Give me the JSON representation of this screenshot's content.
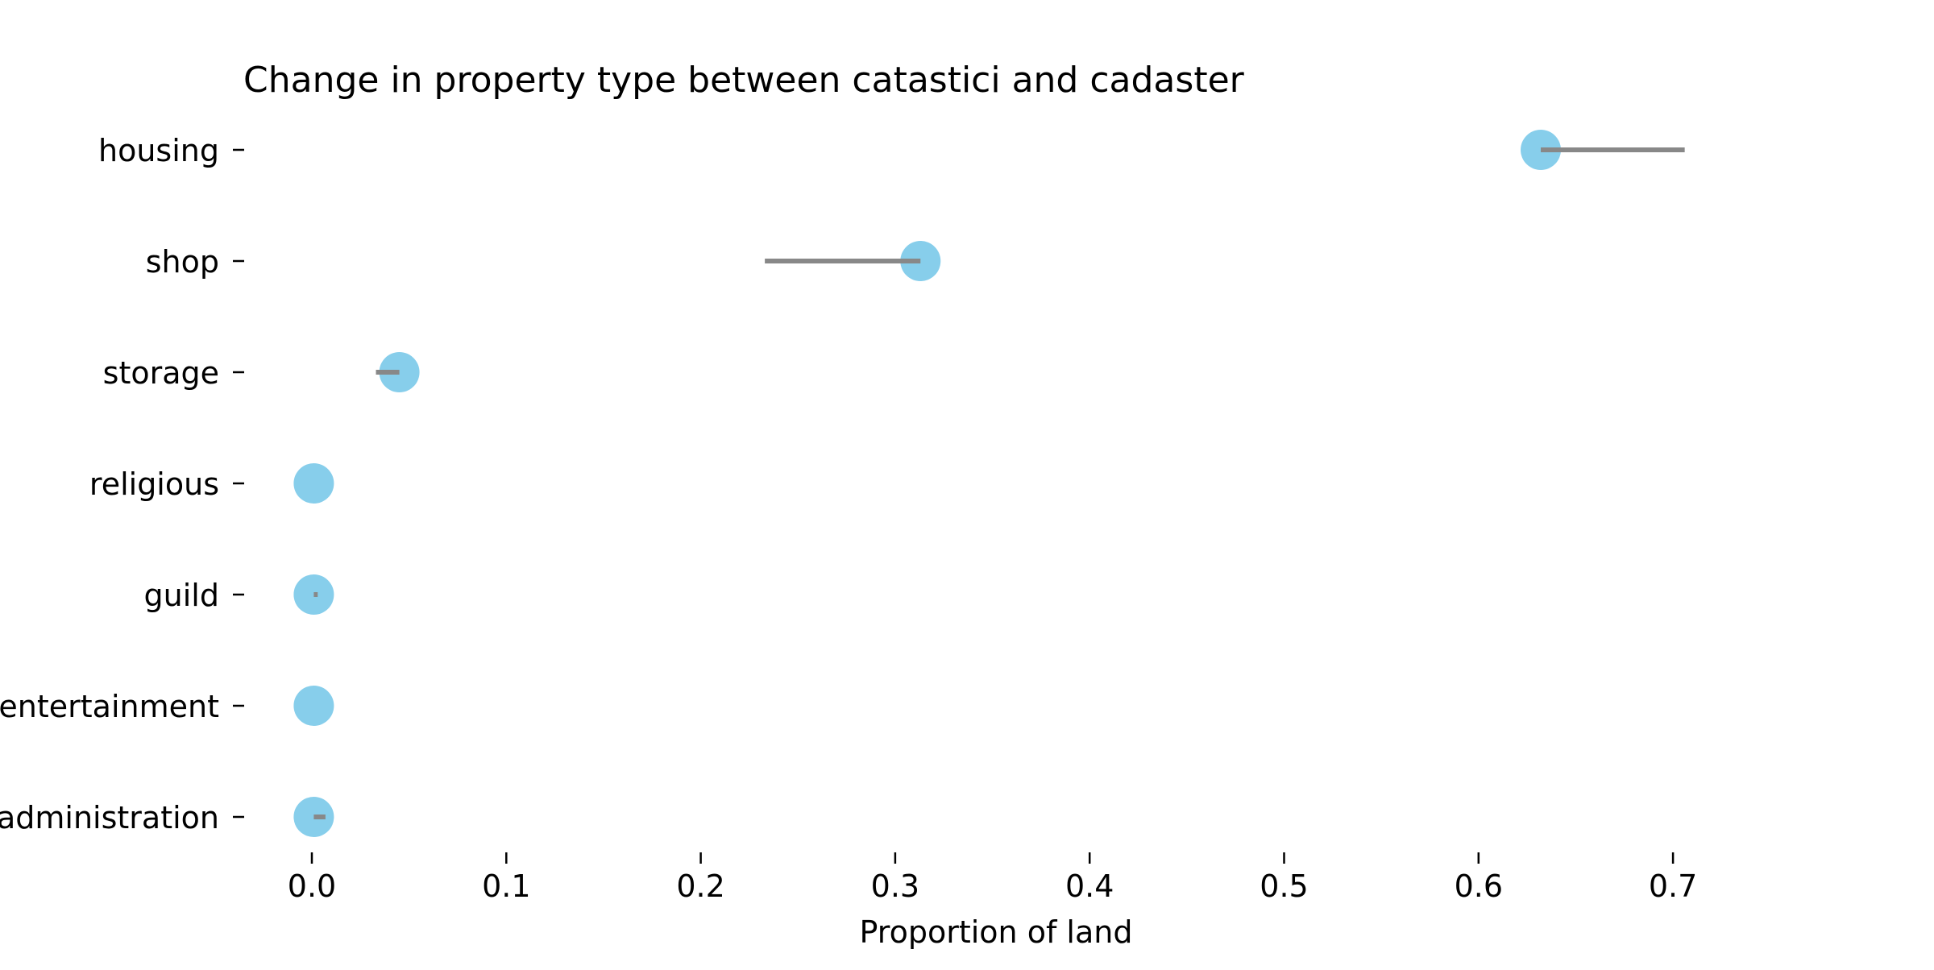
{
  "chart_data": {
    "type": "dumbbell",
    "title": "Change in property type between catastici and cadaster",
    "xlabel": "Proportion of land",
    "ylabel": "",
    "xlim": [
      -0.035,
      0.78
    ],
    "xticks": [
      0.0,
      0.1,
      0.2,
      0.3,
      0.4,
      0.5,
      0.6,
      0.7
    ],
    "xtick_labels": [
      "0.0",
      "0.1",
      "0.2",
      "0.3",
      "0.4",
      "0.5",
      "0.6",
      "0.7"
    ],
    "grid": false,
    "categories": [
      "housing",
      "shop",
      "storage",
      "religious",
      "guild",
      "entertainment",
      "administration"
    ],
    "series": [
      {
        "role": "point",
        "marker": "circle",
        "color": "#87CEEB",
        "values": [
          0.632,
          0.313,
          0.045,
          0.001,
          0.001,
          0.001,
          0.001
        ]
      },
      {
        "role": "line-end",
        "color": "#888888",
        "values": [
          0.706,
          0.233,
          0.033,
          0.001,
          0.003,
          0.001,
          0.007
        ]
      }
    ]
  }
}
